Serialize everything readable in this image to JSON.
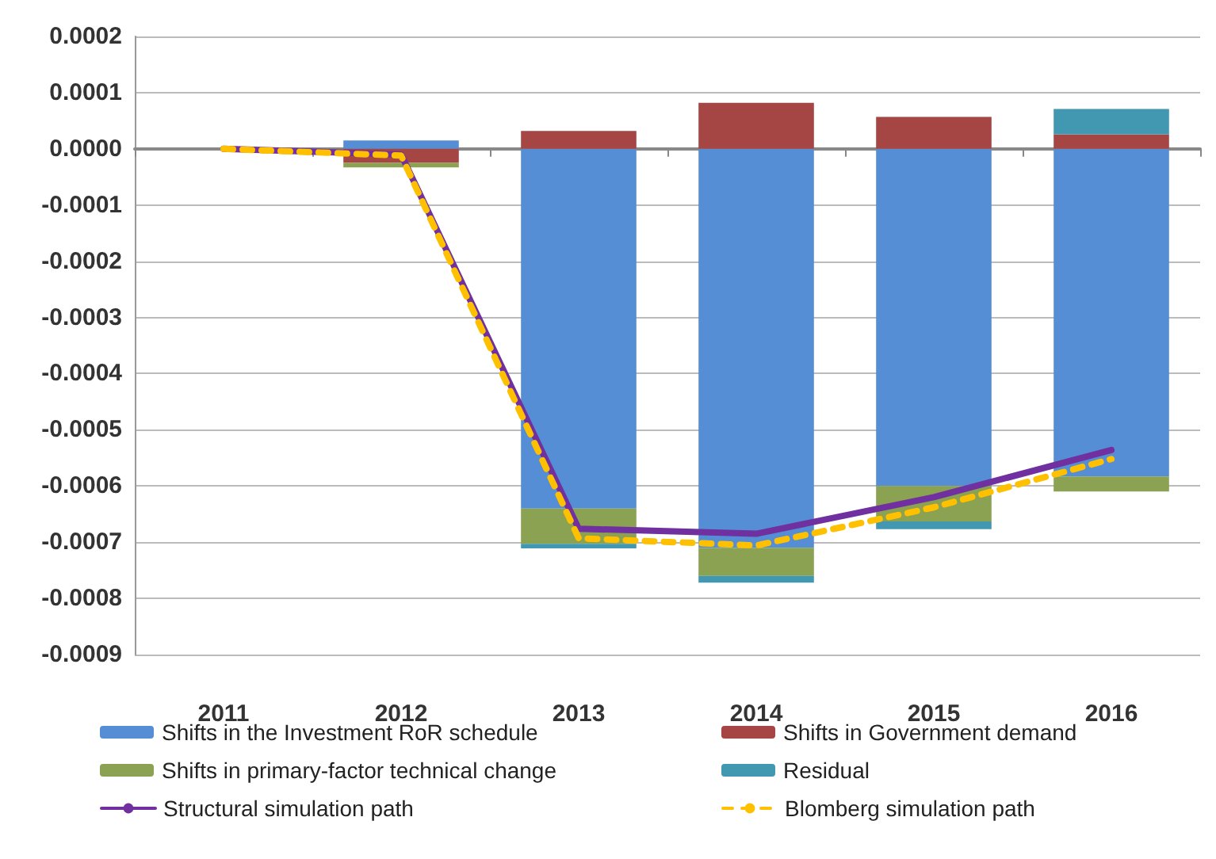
{
  "chart_data": {
    "type": "bar",
    "stacked": true,
    "categories": [
      "2011",
      "2012",
      "2013",
      "2014",
      "2015",
      "2016"
    ],
    "series": [
      {
        "name": "Shifts in the Investment RoR schedule",
        "color": "#558ed5",
        "values": [
          null,
          1.5e-05,
          -0.00064,
          -0.00071,
          -0.0006,
          -0.000583
        ]
      },
      {
        "name": "Shifts in Government demand",
        "color": "#a64644",
        "values": [
          null,
          -2.5e-05,
          3.2e-05,
          8.2e-05,
          5.7e-05,
          2.6e-05
        ]
      },
      {
        "name": "Shifts in primary-factor technical change",
        "color": "#8aa251",
        "values": [
          null,
          -8e-06,
          -6.3e-05,
          -5e-05,
          -6.3e-05,
          -2.7e-05
        ]
      },
      {
        "name": "Residual",
        "color": "#4298b0",
        "values": [
          null,
          null,
          -8e-06,
          -1.2e-05,
          -1.4e-05,
          4.5e-05
        ]
      },
      {
        "name": "Structural simulation path",
        "type": "line",
        "color": "#7030a0",
        "line_style": "solid",
        "values": [
          0,
          -1e-05,
          -0.000676,
          -0.000685,
          -0.00062,
          -0.000536
        ]
      },
      {
        "name": "Blomberg simulation path",
        "type": "line",
        "color": "#ffc000",
        "line_style": "dashed",
        "values": [
          0,
          -1.2e-05,
          -0.000693,
          -0.000706,
          -0.000638,
          -0.000552
        ]
      }
    ],
    "ylim": [
      -0.0009,
      0.0002
    ],
    "yticks": [
      {
        "value": 0.0002,
        "label": "0.0002"
      },
      {
        "value": 0.0001,
        "label": "0.0001"
      },
      {
        "value": 0,
        "label": "0.0000"
      },
      {
        "value": -0.0001,
        "label": "-0.0001"
      },
      {
        "value": -0.0002,
        "label": "-0.0002"
      },
      {
        "value": -0.0003,
        "label": "-0.0003"
      },
      {
        "value": -0.0004,
        "label": "-0.0004"
      },
      {
        "value": -0.0005,
        "label": "-0.0005"
      },
      {
        "value": -0.0006,
        "label": "-0.0006"
      },
      {
        "value": -0.0007,
        "label": "-0.0007"
      },
      {
        "value": -0.0008,
        "label": "-0.0008"
      },
      {
        "value": -0.0009,
        "label": "-0.0009"
      }
    ],
    "grid": "y",
    "legend": "bottom",
    "marker": "none"
  }
}
